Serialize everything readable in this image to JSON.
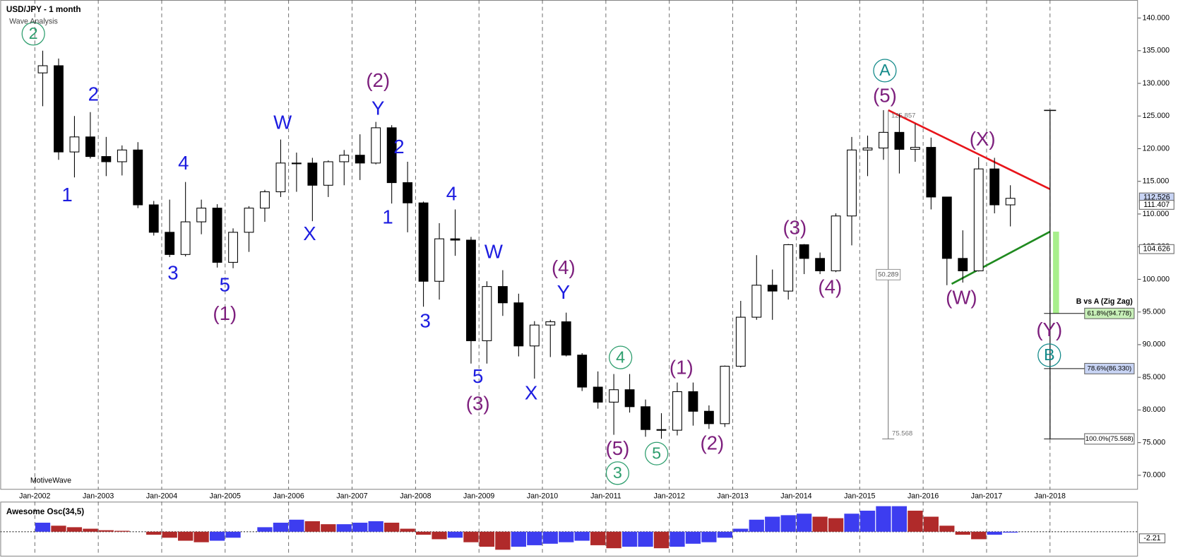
{
  "chart_data": {
    "type": "candlestick",
    "title": "USD/JPY - 1 month",
    "subtitle": "Wave Analysis",
    "footer": "MotiveWave",
    "xlim": [
      2001.456,
      2019.385
    ],
    "ylim": [
      67.8,
      142.76
    ],
    "xticks": [
      {
        "value": 2002,
        "label": "Jan-2002"
      },
      {
        "value": 2003,
        "label": "Jan-2003"
      },
      {
        "value": 2004,
        "label": "Jan-2004"
      },
      {
        "value": 2005,
        "label": "Jan-2005"
      },
      {
        "value": 2006,
        "label": "Jan-2006"
      },
      {
        "value": 2007,
        "label": "Jan-2007"
      },
      {
        "value": 2008,
        "label": "Jan-2008"
      },
      {
        "value": 2009,
        "label": "Jan-2009"
      },
      {
        "value": 2010,
        "label": "Jan-2010"
      },
      {
        "value": 2011,
        "label": "Jan-2011"
      },
      {
        "value": 2012,
        "label": "Jan-2012"
      },
      {
        "value": 2013,
        "label": "Jan-2013"
      },
      {
        "value": 2014,
        "label": "Jan-2014"
      },
      {
        "value": 2015,
        "label": "Jan-2015"
      },
      {
        "value": 2016,
        "label": "Jan-2016"
      },
      {
        "value": 2017,
        "label": "Jan-2017"
      },
      {
        "value": 2018,
        "label": "Jan-2018"
      }
    ],
    "yticks": [
      {
        "value": 70,
        "label": "70.000"
      },
      {
        "value": 75,
        "label": "75.000"
      },
      {
        "value": 80,
        "label": "80.000"
      },
      {
        "value": 85,
        "label": "85.000"
      },
      {
        "value": 90,
        "label": "90.000"
      },
      {
        "value": 95,
        "label": "95.000"
      },
      {
        "value": 100,
        "label": "100.000"
      },
      {
        "value": 105,
        "label": "105.000"
      },
      {
        "value": 110,
        "label": "110.000"
      },
      {
        "value": 115,
        "label": "115.000"
      },
      {
        "value": 120,
        "label": "120.000"
      },
      {
        "value": 125,
        "label": "125.000"
      },
      {
        "value": 130,
        "label": "130.000"
      },
      {
        "value": 135,
        "label": "135.000"
      },
      {
        "value": 140,
        "label": "140.000"
      }
    ],
    "grid": true,
    "x": [
      2002.125,
      2002.375,
      2002.625,
      2002.875,
      2003.125,
      2003.375,
      2003.625,
      2003.875,
      2004.125,
      2004.375,
      2004.625,
      2004.875,
      2005.125,
      2005.375,
      2005.625,
      2005.875,
      2006.125,
      2006.375,
      2006.625,
      2006.875,
      2007.125,
      2007.375,
      2007.625,
      2007.875,
      2008.125,
      2008.375,
      2008.625,
      2008.875,
      2009.125,
      2009.375,
      2009.625,
      2009.875,
      2010.125,
      2010.375,
      2010.625,
      2010.875,
      2011.125,
      2011.375,
      2011.625,
      2011.875,
      2012.125,
      2012.375,
      2012.625,
      2012.875,
      2013.125,
      2013.375,
      2013.625,
      2013.875,
      2014.125,
      2014.375,
      2014.625,
      2014.875,
      2015.125,
      2015.375,
      2015.625,
      2015.875,
      2016.125,
      2016.375,
      2016.625,
      2016.875,
      2017.125,
      2017.375
    ],
    "open": [
      131.6,
      132.7,
      119.5,
      121.8,
      118.8,
      118,
      119.8,
      111.4,
      107.2,
      103.8,
      108.8,
      110.9,
      102.6,
      107.2,
      110.9,
      113.4,
      117.8,
      117.8,
      114.4,
      118,
      119,
      117.8,
      123.2,
      114.8,
      111.7,
      99.7,
      106.2,
      106,
      90.6,
      98.9,
      96.4,
      89.8,
      93,
      93.5,
      88.4,
      83.5,
      81.2,
      83.1,
      80.5,
      77,
      76.9,
      82.8,
      79.8,
      77.9,
      86.7,
      94.2,
      99.1,
      98.2,
      105.3,
      103.2,
      101.3,
      109.7,
      119.8,
      120.1,
      122.5,
      119.9,
      120.2,
      112.6,
      103.2,
      101.3,
      116.9,
      111.4
    ],
    "high": [
      135,
      133.8,
      125,
      125.6,
      121.8,
      120.5,
      121,
      112,
      112.2,
      114.9,
      112.2,
      111.5,
      107.8,
      111.2,
      113.7,
      121.4,
      119.4,
      118.6,
      118.2,
      119.8,
      122.2,
      124.1,
      123.6,
      118,
      111.9,
      108.6,
      110.7,
      106.5,
      99.7,
      101.4,
      97.8,
      93.6,
      93.8,
      94.9,
      88.7,
      85.9,
      85.5,
      85.5,
      81.6,
      79.5,
      84.2,
      84.2,
      80.7,
      86.8,
      96.7,
      103.7,
      101.5,
      105.4,
      105.4,
      104.1,
      110.1,
      121.8,
      122,
      125.9,
      125.3,
      123.8,
      121.7,
      112.6,
      107.5,
      118.7,
      118.6,
      114.4
    ],
    "low": [
      126.5,
      118.3,
      115.6,
      118.5,
      115.8,
      115.9,
      110.9,
      106.7,
      103.4,
      103.5,
      106.9,
      101.8,
      101.7,
      104.2,
      108.8,
      112.6,
      113.4,
      108.9,
      112.6,
      114.4,
      115.2,
      117.6,
      111.6,
      107.2,
      95.8,
      96.9,
      103.6,
      87.1,
      87.1,
      94.4,
      88.2,
      84.8,
      88.1,
      88.2,
      82.9,
      80.2,
      76.2,
      79.6,
      75.9,
      75.6,
      76.1,
      77.6,
      77.1,
      77.4,
      86.5,
      93.8,
      93.8,
      96.9,
      100.8,
      100.8,
      101.1,
      105.2,
      115.8,
      118.3,
      116.2,
      118,
      110.7,
      99.1,
      99.5,
      101.2,
      110.1,
      108.1
    ],
    "close": [
      132.7,
      119.5,
      121.8,
      118.8,
      118,
      119.8,
      111.4,
      107.2,
      103.8,
      108.8,
      110.9,
      102.6,
      107.2,
      110.9,
      113.4,
      117.8,
      117.8,
      114.4,
      118,
      119,
      117.8,
      123.2,
      114.8,
      111.7,
      99.7,
      106.2,
      106,
      90.6,
      98.9,
      96.4,
      89.8,
      93,
      93.5,
      88.4,
      83.5,
      81.2,
      83.1,
      80.5,
      77,
      76.9,
      82.8,
      79.8,
      77.9,
      86.7,
      94.2,
      99.1,
      98.2,
      105.3,
      103.2,
      101.3,
      109.7,
      119.8,
      120.1,
      122.5,
      119.9,
      120.2,
      112.6,
      103.2,
      101.3,
      116.9,
      111.4,
      112.4
    ],
    "up_color": "#ffffff",
    "down_color": "#000000",
    "price_markers": [
      112.526,
      111.407,
      104.626
    ],
    "trendlines": [
      {
        "color": "#e8141a",
        "x": [
          2015.45,
          2018
        ],
        "y": [
          125.9,
          113.8
        ]
      },
      {
        "color": "#1f8a1f",
        "x": [
          2016.45,
          2018
        ],
        "y": [
          99.3,
          107.3
        ]
      }
    ],
    "measure": {
      "high": 125.857,
      "low": 75.568,
      "range": 50.289,
      "x": 2015.45
    },
    "fib": {
      "title": "B vs A (Zig Zag)",
      "x": 2018,
      "high": 125.857,
      "levels": [
        {
          "value": 94.778,
          "label": "61.8%(94.778)"
        },
        {
          "value": 86.33,
          "label": "78.6%(86.330)"
        },
        {
          "value": 75.568,
          "label": "100.0%(75.568)"
        }
      ]
    },
    "annotations": [
      {
        "text": "2",
        "color": "#2e9e6e",
        "circle": true
      },
      {
        "text": "4",
        "color": "#2e9e6e",
        "circle": true
      },
      {
        "text": "5",
        "color": "#2e9e6e",
        "circle": true
      },
      {
        "text": "3",
        "color": "#2e9e6e",
        "circle": true
      },
      {
        "text": "A",
        "color": "#138a8a",
        "circle": true
      },
      {
        "text": "B",
        "color": "#138a8a",
        "circle": true
      },
      {
        "text": "2",
        "color": "#1c1ce0"
      },
      {
        "text": "1",
        "color": "#1c1ce0"
      },
      {
        "text": "4",
        "color": "#1c1ce0"
      },
      {
        "text": "3",
        "color": "#1c1ce0"
      },
      {
        "text": "5",
        "color": "#1c1ce0"
      },
      {
        "text": "W",
        "color": "#1c1ce0"
      },
      {
        "text": "X",
        "color": "#1c1ce0"
      },
      {
        "text": "2",
        "color": "#1c1ce0"
      },
      {
        "text": "1",
        "color": "#1c1ce0"
      },
      {
        "text": "4",
        "color": "#1c1ce0"
      },
      {
        "text": "3",
        "color": "#1c1ce0"
      },
      {
        "text": "5",
        "color": "#1c1ce0"
      },
      {
        "text": "W",
        "color": "#1c1ce0"
      },
      {
        "text": "X",
        "color": "#1c1ce0"
      },
      {
        "text": "Y",
        "color": "#1c1ce0"
      },
      {
        "text": "Y",
        "color": "#1c1ce0"
      },
      {
        "text": "(1)",
        "color": "#7d1f7d"
      },
      {
        "text": "(2)",
        "color": "#7d1f7d"
      },
      {
        "text": "(3)",
        "color": "#7d1f7d"
      },
      {
        "text": "(4)",
        "color": "#7d1f7d"
      },
      {
        "text": "(5)",
        "color": "#7d1f7d"
      },
      {
        "text": "(1)",
        "color": "#7d1f7d"
      },
      {
        "text": "(2)",
        "color": "#7d1f7d"
      },
      {
        "text": "(3)",
        "color": "#7d1f7d"
      },
      {
        "text": "(4)",
        "color": "#7d1f7d"
      },
      {
        "text": "(5)",
        "color": "#7d1f7d"
      },
      {
        "text": "(X)",
        "color": "#7d1f7d"
      },
      {
        "text": "(W)",
        "color": "#7d1f7d"
      },
      {
        "text": "(Y)",
        "color": "#7d1f7d"
      }
    ],
    "oscillator": {
      "title": "Awesome Osc(34,5)",
      "ylim": [
        -8,
        10
      ],
      "last": -2.21,
      "up_color": "#3d3df0",
      "down_color": "#b02a2a",
      "values": [
        3,
        2,
        1.5,
        1,
        0.5,
        0.3,
        0,
        -1,
        -2,
        -3,
        -3.5,
        -3,
        -2,
        0,
        1.5,
        3,
        4,
        3.5,
        2.5,
        2.5,
        3,
        3.5,
        3,
        1,
        -1,
        -2.5,
        -2,
        -3.5,
        -5,
        -6,
        -5,
        -4.5,
        -4,
        -3.5,
        -3,
        -4.5,
        -5.5,
        -5,
        -5,
        -5.5,
        -5,
        -4,
        -3.5,
        -2,
        1,
        4,
        5,
        5.5,
        6,
        5,
        4.5,
        6,
        7,
        8.5,
        8.5,
        7,
        5,
        2,
        -1,
        -2.5,
        -1,
        -0.3
      ]
    }
  }
}
